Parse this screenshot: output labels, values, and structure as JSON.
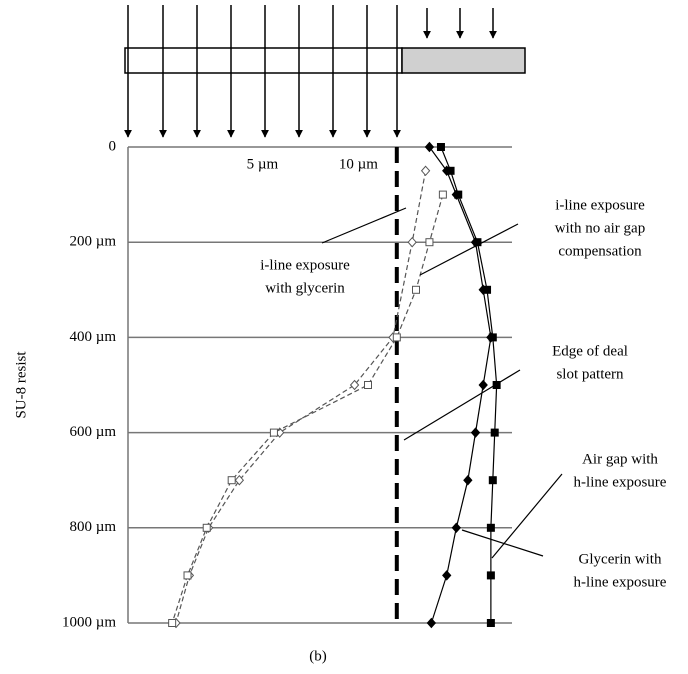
{
  "chart_data": {
    "type": "scatter",
    "ylabel": "SU-8 resist",
    "caption": "(b)",
    "xlim": [
      -2,
      18
    ],
    "ylim": [
      0,
      1000
    ],
    "y_inverted": true,
    "grid": true,
    "xticks": [
      {
        "value": 5,
        "label": "5 µm"
      },
      {
        "value": 10,
        "label": "10 µm"
      }
    ],
    "yticks": [
      0,
      {
        "value": 200,
        "label": "200 µm"
      },
      {
        "value": 400,
        "label": "400 µm"
      },
      {
        "value": 600,
        "label": "600 µm"
      },
      {
        "value": 800,
        "label": "800 µm"
      },
      {
        "value": 1000,
        "label": "1000 µm"
      }
    ],
    "edge_line_x": 12,
    "series": [
      {
        "color": "#555555",
        "marker": "diamond-open",
        "line": "dashed",
        "x": [
          13.5,
          12.8,
          11.8,
          9.8,
          5.9,
          3.8,
          2.2,
          1.2,
          0.5
        ],
        "values": [
          50,
          200,
          400,
          500,
          600,
          700,
          800,
          900,
          1000
        ]
      },
      {
        "color": "#555555",
        "marker": "square-open",
        "line": "dashed",
        "x": [
          14.4,
          13.7,
          13.0,
          12.0,
          10.5,
          5.6,
          3.4,
          2.1,
          1.1,
          0.3
        ],
        "values": [
          100,
          200,
          300,
          400,
          500,
          600,
          700,
          800,
          900,
          1000
        ]
      },
      {
        "color": "#000000",
        "marker": "diamond",
        "line": "solid",
        "x": [
          13.7,
          14.6,
          15.1,
          16.1,
          16.5,
          16.9,
          16.5,
          16.1,
          15.7,
          15.1,
          14.6,
          13.8
        ],
        "values": [
          0,
          50,
          100,
          200,
          300,
          400,
          500,
          600,
          700,
          800,
          900,
          1000
        ]
      },
      {
        "color": "#000000",
        "marker": "square",
        "line": "solid",
        "x": [
          14.3,
          14.8,
          15.2,
          16.2,
          16.7,
          17.0,
          17.2,
          17.1,
          17.0,
          16.9,
          16.9,
          16.9
        ],
        "values": [
          0,
          50,
          100,
          200,
          300,
          400,
          500,
          600,
          700,
          800,
          900,
          1000
        ]
      }
    ],
    "annotations": [
      {
        "lines": [
          "i-line exposure",
          "with glycerin"
        ]
      },
      {
        "lines": [
          "i-line exposure",
          "with no air gap",
          "compensation"
        ]
      },
      {
        "lines": [
          "Edge of deal",
          "slot pattern"
        ]
      },
      {
        "lines": [
          "Air gap with",
          "h-line exposure"
        ]
      },
      {
        "lines": [
          "Glycerin with",
          "h-line exposure"
        ]
      }
    ]
  }
}
